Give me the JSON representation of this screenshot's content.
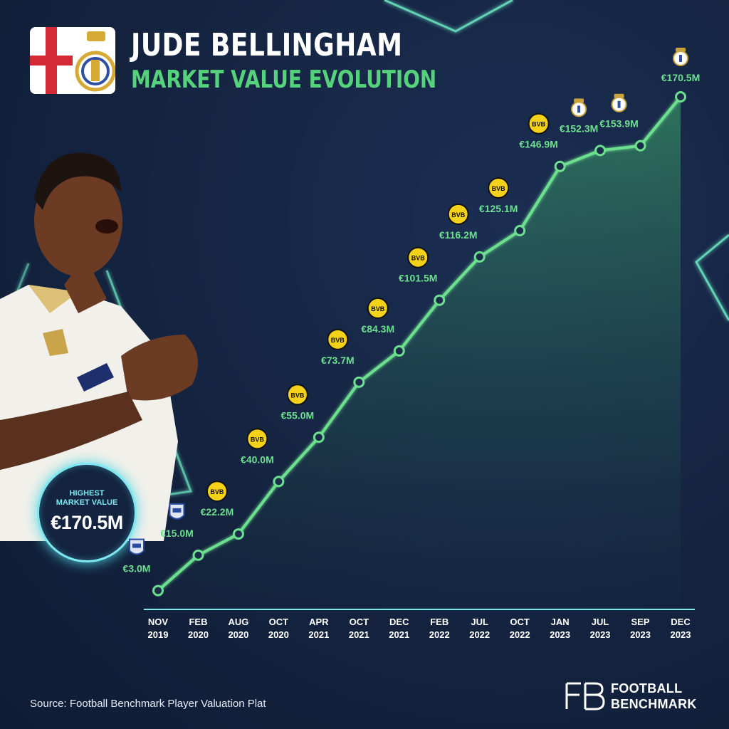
{
  "header": {
    "title": "JUDE BELLINGHAM",
    "subtitle": "MARKET VALUE EVOLUTION"
  },
  "badge": {
    "label_line1": "HIGHEST",
    "label_line2": "MARKET VALUE",
    "value": "€170.5M"
  },
  "chart_data": {
    "type": "area",
    "title": "MARKET VALUE EVOLUTION",
    "xlabel": "",
    "ylabel": "",
    "ylim": [
      0,
      175
    ],
    "grid": false,
    "categories": [
      [
        "NOV",
        "2019"
      ],
      [
        "FEB",
        "2020"
      ],
      [
        "AUG",
        "2020"
      ],
      [
        "OCT",
        "2020"
      ],
      [
        "APR",
        "2021"
      ],
      [
        "OCT",
        "2021"
      ],
      [
        "DEC",
        "2021"
      ],
      [
        "FEB",
        "2022"
      ],
      [
        "JUL",
        "2022"
      ],
      [
        "OCT",
        "2022"
      ],
      [
        "JAN",
        "2023"
      ],
      [
        "JUL",
        "2023"
      ],
      [
        "SEP",
        "2023"
      ],
      [
        "DEC",
        "2023"
      ]
    ],
    "values": [
      3.0,
      15.0,
      22.2,
      40.0,
      55.0,
      73.7,
      84.3,
      101.5,
      116.2,
      125.1,
      146.9,
      152.3,
      153.9,
      170.5
    ],
    "labels": [
      "€3.0M",
      "€15.0M",
      "€22.2M",
      "€40.0M",
      "€55.0M",
      "€73.7M",
      "€84.3M",
      "€101.5M",
      "€116.2M",
      "€125.1M",
      "€146.9M",
      "€152.3M",
      "€153.9M",
      "€170.5M"
    ],
    "clubs": [
      "birmingham",
      "birmingham",
      "dortmund",
      "dortmund",
      "dortmund",
      "dortmund",
      "dortmund",
      "dortmund",
      "dortmund",
      "dortmund",
      "dortmund",
      "real-madrid",
      "real-madrid",
      "real-madrid"
    ],
    "club_badge_text": {
      "dortmund": "BVB"
    },
    "colors": {
      "line": "#6de08f",
      "label": "#6de08f",
      "axis": "#7fe7f0",
      "tick": "#ffffff"
    }
  },
  "footer": {
    "source": "Source: Football Benchmark Player Valuation Plat",
    "logo_line1": "FOOTBALL",
    "logo_line2": "BENCHMARK",
    "logo_mark": "FB"
  }
}
